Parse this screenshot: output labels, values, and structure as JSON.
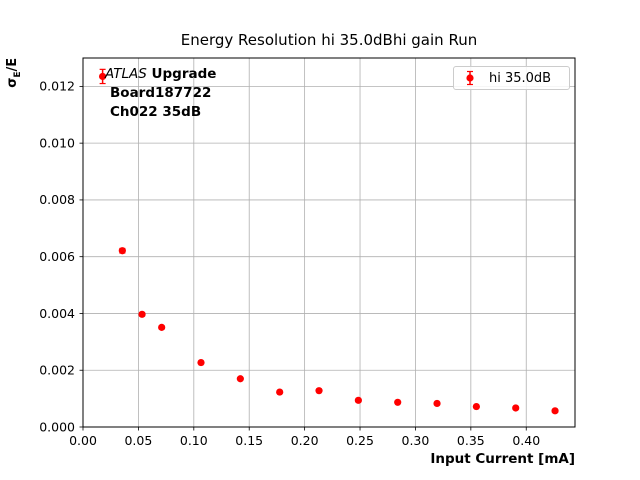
{
  "figure_title": "Energy Resolution hi 35.0dBhi gain Run",
  "annotation": {
    "experiment": "ATLAS",
    "line1_rest": "Upgrade",
    "line2": "Board187722",
    "line3": "Ch022 35dB"
  },
  "legend": {
    "label": "hi 35.0dB",
    "marker_color": "#ff0000",
    "position": "upper right"
  },
  "axis": {
    "ylabel_sigma": "σ",
    "ylabel_sub": "E",
    "ylabel_rest": "/E"
  },
  "colors": {
    "series": "#ff0000",
    "grid": "#b0b0b0",
    "frame": "#000000",
    "text": "#000000"
  },
  "chart_data": {
    "type": "scatter",
    "title": "Energy Resolution hi 35.0dBhi gain Run",
    "xlabel": "Input Current [mA]",
    "ylabel": "σE/E",
    "xlim": [
      0,
      0.444
    ],
    "ylim": [
      0,
      0.013
    ],
    "grid": true,
    "legend_position": "upper right",
    "x_ticks": {
      "values": [
        0.0,
        0.05,
        0.1,
        0.15,
        0.2,
        0.25,
        0.3,
        0.35,
        0.4
      ],
      "labels": [
        "0.00",
        "0.05",
        "0.10",
        "0.15",
        "0.20",
        "0.25",
        "0.30",
        "0.35",
        "0.40"
      ]
    },
    "y_ticks": {
      "values": [
        0.0,
        0.002,
        0.004,
        0.006,
        0.008,
        0.01,
        0.012
      ],
      "labels": [
        "0.000",
        "0.002",
        "0.004",
        "0.006",
        "0.008",
        "0.010",
        "0.012"
      ]
    },
    "series": [
      {
        "name": "hi 35.0dB",
        "color": "#ff0000",
        "marker": "circle-with-errorbar",
        "x": [
          0.0177,
          0.0355,
          0.0533,
          0.071,
          0.1065,
          0.142,
          0.1775,
          0.213,
          0.2485,
          0.284,
          0.3195,
          0.355,
          0.3905,
          0.426
        ],
        "y": [
          0.01235,
          0.00621,
          0.00397,
          0.00351,
          0.00227,
          0.0017,
          0.00123,
          0.00128,
          0.00094,
          0.00087,
          0.00083,
          0.00072,
          0.00067,
          0.00057
        ],
        "yerr": [
          0.00025,
          8e-05,
          6e-05,
          5e-05,
          4e-05,
          4e-05,
          3e-05,
          3e-05,
          3e-05,
          3e-05,
          3e-05,
          2e-05,
          2e-05,
          2e-05
        ]
      }
    ]
  }
}
